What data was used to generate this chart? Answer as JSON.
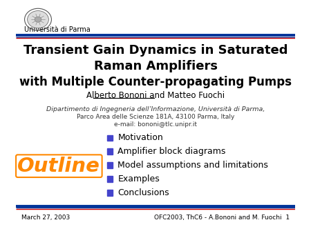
{
  "background_color": "#ffffff",
  "uni_name": "Università di Parma",
  "title_line1": "Transient Gain Dynamics in Saturated",
  "title_line2": "Raman Amplifiers",
  "title_line3": "with Multiple Counter-propagating Pumps",
  "authors_underlined": "Alberto Bononi",
  "authors_normal": " and Matteo Fuochi",
  "affil_line1": "Dipartimento di Ingegneria dell’Informazione, Università di Parma,",
  "affil_line2": "Parco Area delle Scienze 181A, 43100 Parma, Italy",
  "affil_line3": "e-mail: bononi@tlc.unipr.it",
  "outline_word": "Outline",
  "outline_color": "#ff8800",
  "bullet_items": [
    "Motivation",
    "Amplifier block diagrams",
    "Model assumptions and limitations",
    "Examples",
    "Conclusions"
  ],
  "bullet_color": "#4444cc",
  "footer_left": "March 27, 2003",
  "footer_right": "OFC2003, ThC6 - A.Bononi and M. Fuochi  1",
  "title_color": "#000000",
  "text_color": "#000000",
  "line_blue": "#003399",
  "line_red": "#cc0000"
}
